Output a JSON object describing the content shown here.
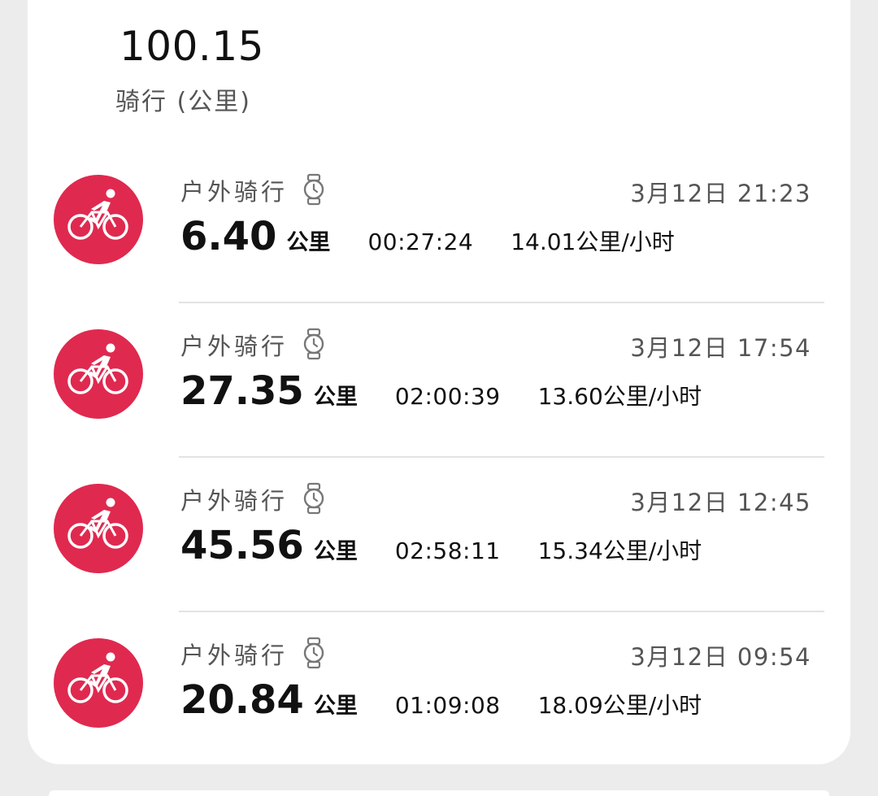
{
  "summary": {
    "total_distance": "100.15",
    "label": "骑行 (公里)"
  },
  "activities": [
    {
      "icon": "cycling-icon",
      "title": "户外骑行",
      "device_icon": "watch-icon",
      "time": "3月12日 21:23",
      "distance": "6.40",
      "distance_unit": "公里",
      "duration": "00:27:24",
      "speed": "14.01公里/小时"
    },
    {
      "icon": "cycling-icon",
      "title": "户外骑行",
      "device_icon": "watch-icon",
      "time": "3月12日 17:54",
      "distance": "27.35",
      "distance_unit": "公里",
      "duration": "02:00:39",
      "speed": "13.60公里/小时"
    },
    {
      "icon": "cycling-icon",
      "title": "户外骑行",
      "device_icon": "watch-icon",
      "time": "3月12日 12:45",
      "distance": "45.56",
      "distance_unit": "公里",
      "duration": "02:58:11",
      "speed": "15.34公里/小时"
    },
    {
      "icon": "cycling-icon",
      "title": "户外骑行",
      "device_icon": "watch-icon",
      "time": "3月12日 09:54",
      "distance": "20.84",
      "distance_unit": "公里",
      "duration": "01:09:08",
      "speed": "18.09公里/小时"
    }
  ],
  "colors": {
    "accent": "#e0294f",
    "background": "#ececec",
    "card": "#ffffff",
    "primary_text": "#111111",
    "secondary_text": "#555555",
    "divider": "#e3e3e3"
  }
}
